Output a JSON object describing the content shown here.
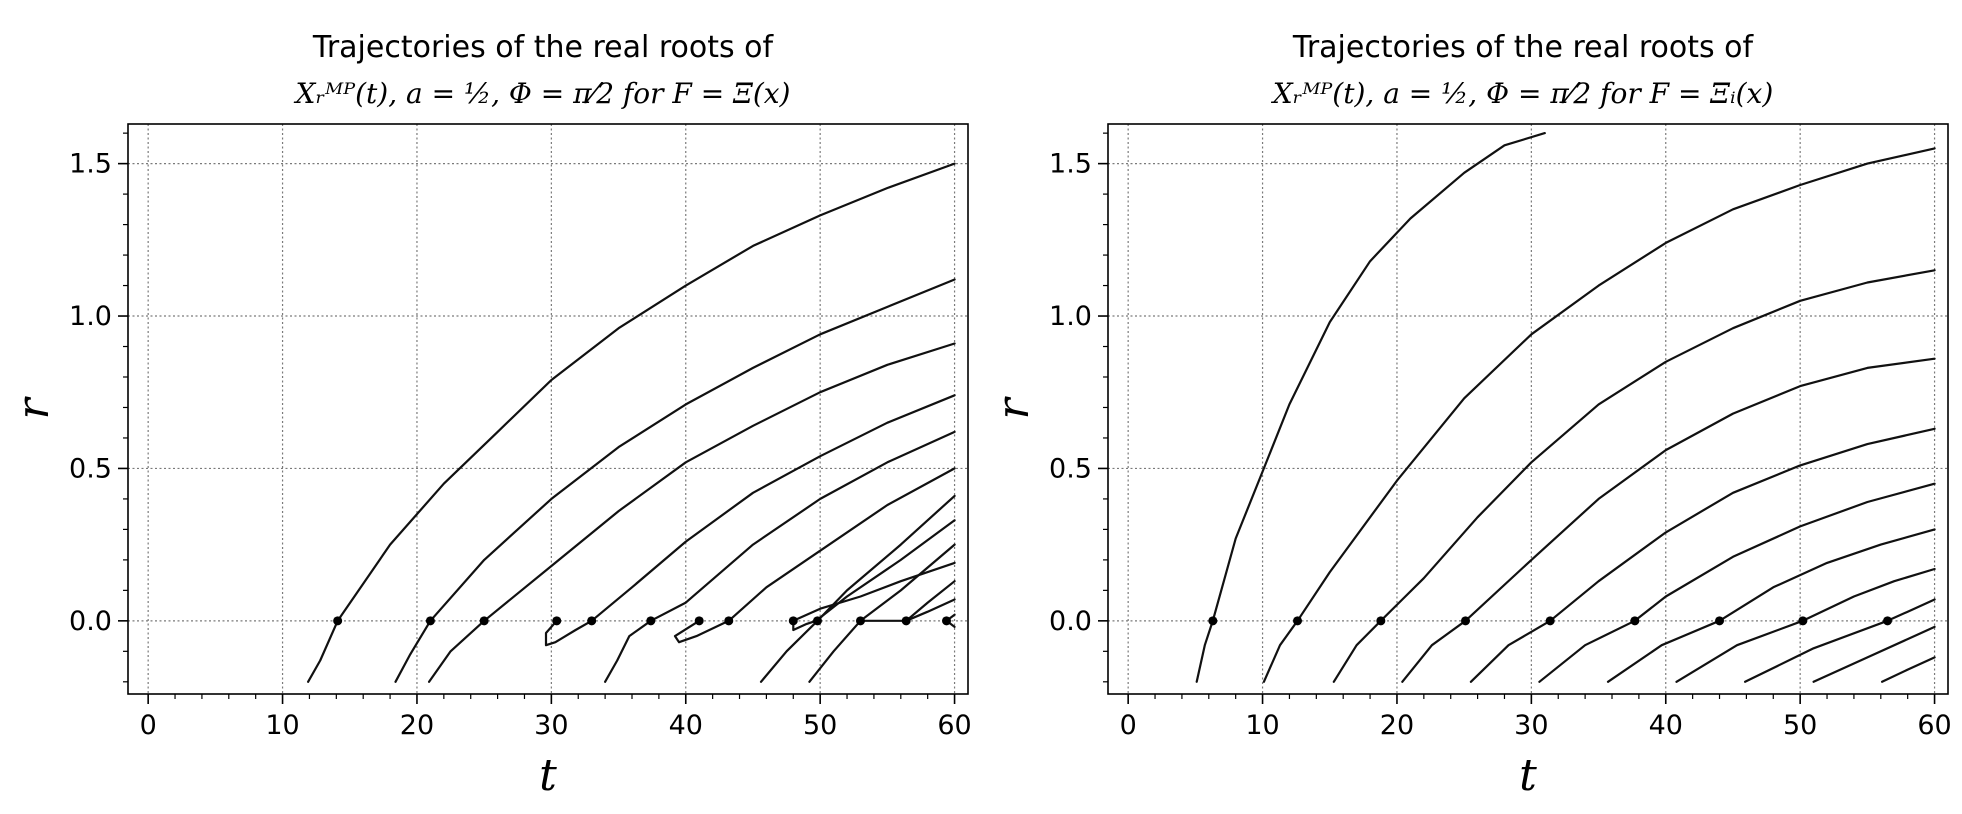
{
  "chart_data": [
    {
      "type": "line",
      "title_line1": "Trajectories of the real roots of",
      "title_line2": "X_r^{MP}(t), a = 1/2, Φ = π/2 for F = Ξ(x)",
      "title_line2_display": "Xᵣᴹᴾ(t), a = ½, Φ = π⁄2 for F = Ξ(x)",
      "xlabel": "t",
      "ylabel": "r",
      "xlim": [
        -1.5,
        61
      ],
      "ylim": [
        -0.24,
        1.63
      ],
      "xticks": [
        0,
        10,
        20,
        30,
        40,
        50,
        60
      ],
      "yticks": [
        0.0,
        0.5,
        1.0,
        1.5
      ],
      "xtick_labels": [
        "0",
        "10",
        "20",
        "30",
        "40",
        "50",
        "60"
      ],
      "ytick_labels": [
        "0.0",
        "0.5",
        "1.0",
        "1.5"
      ],
      "grid": true,
      "series": [
        {
          "points": [
            [
              11.9,
              -0.2
            ],
            [
              12.8,
              -0.13
            ],
            [
              14.1,
              0.0
            ],
            [
              18,
              0.25
            ],
            [
              22,
              0.45
            ],
            [
              26,
              0.62
            ],
            [
              30,
              0.79
            ],
            [
              35,
              0.96
            ],
            [
              40,
              1.1
            ],
            [
              45,
              1.23
            ],
            [
              50,
              1.33
            ],
            [
              55,
              1.42
            ],
            [
              60,
              1.5
            ]
          ]
        },
        {
          "points": [
            [
              18.4,
              -0.2
            ],
            [
              19.5,
              -0.11
            ],
            [
              21.0,
              0.0
            ],
            [
              25,
              0.2
            ],
            [
              30,
              0.4
            ],
            [
              35,
              0.57
            ],
            [
              40,
              0.71
            ],
            [
              45,
              0.83
            ],
            [
              50,
              0.94
            ],
            [
              55,
              1.03
            ],
            [
              60,
              1.12
            ]
          ]
        },
        {
          "points": [
            [
              20.9,
              -0.2
            ],
            [
              22.5,
              -0.1
            ],
            [
              25.0,
              0.0
            ],
            [
              30,
              0.18
            ],
            [
              35,
              0.36
            ],
            [
              40,
              0.52
            ],
            [
              45,
              0.64
            ],
            [
              50,
              0.75
            ],
            [
              55,
              0.84
            ],
            [
              60,
              0.91
            ]
          ]
        },
        {
          "points": [
            [
              30.4,
              0.0
            ],
            [
              29.6,
              -0.04
            ],
            [
              29.6,
              -0.08
            ],
            [
              30.3,
              -0.07
            ],
            [
              31.8,
              -0.03
            ],
            [
              33.0,
              0.0
            ],
            [
              36,
              0.11
            ],
            [
              40,
              0.26
            ],
            [
              45,
              0.42
            ],
            [
              50,
              0.54
            ],
            [
              55,
              0.65
            ],
            [
              60,
              0.74
            ]
          ]
        },
        {
          "points": [
            [
              34.0,
              -0.2
            ],
            [
              34.9,
              -0.13
            ],
            [
              35.8,
              -0.05
            ],
            [
              37.4,
              0.0
            ],
            [
              40,
              0.06
            ],
            [
              45,
              0.25
            ],
            [
              50,
              0.4
            ],
            [
              55,
              0.52
            ],
            [
              60,
              0.62
            ]
          ]
        },
        {
          "points": [
            [
              41.0,
              0.0
            ],
            [
              39.2,
              -0.05
            ],
            [
              39.5,
              -0.07
            ],
            [
              40.8,
              -0.05
            ],
            [
              43.2,
              0.0
            ],
            [
              46,
              0.11
            ],
            [
              50,
              0.23
            ],
            [
              55,
              0.38
            ],
            [
              60,
              0.5
            ]
          ]
        },
        {
          "points": [
            [
              45.6,
              -0.2
            ],
            [
              47.5,
              -0.1
            ],
            [
              49.8,
              0.0
            ],
            [
              52,
              0.1
            ],
            [
              56,
              0.25
            ],
            [
              60,
              0.41
            ]
          ]
        },
        {
          "points": [
            [
              48.0,
              0.0
            ],
            [
              48.0,
              -0.03
            ],
            [
              49.0,
              -0.01
            ],
            [
              49.7,
              0.0
            ],
            [
              52,
              0.08
            ],
            [
              56,
              0.2
            ],
            [
              60,
              0.33
            ]
          ]
        },
        {
          "points": [
            [
              49.2,
              -0.2
            ],
            [
              51.0,
              -0.1
            ],
            [
              53.0,
              0.0
            ],
            [
              56,
              0.1
            ],
            [
              60,
              0.25
            ]
          ]
        },
        {
          "points": [
            [
              48.0,
              0.0
            ],
            [
              50,
              0.04
            ],
            [
              53,
              0.08
            ],
            [
              56,
              0.13
            ],
            [
              60,
              0.19
            ]
          ]
        },
        {
          "points": [
            [
              53.0,
              0.0
            ],
            [
              56.4,
              0.0
            ],
            [
              58,
              0.06
            ],
            [
              60,
              0.13
            ]
          ]
        },
        {
          "points": [
            [
              56.4,
              0.0
            ],
            [
              58,
              0.03
            ],
            [
              60,
              0.07
            ]
          ]
        },
        {
          "points": [
            [
              59.4,
              0.0
            ],
            [
              60,
              0.02
            ]
          ]
        },
        {
          "points": [
            [
              59.4,
              0.0
            ],
            [
              60,
              -0.02
            ]
          ]
        }
      ],
      "root_markers": [
        14.1,
        21.0,
        25.0,
        30.4,
        33.0,
        37.4,
        41.0,
        43.2,
        48.0,
        49.8,
        53.0,
        56.4,
        59.4
      ],
      "marker_y": 0.0
    },
    {
      "type": "line",
      "title_line1": "Trajectories of the real roots of",
      "title_line2": "X_r^{MP}(t), a = 1/2, Φ = π/2 for F = Ξ_i(x)",
      "title_line2_display": "Xᵣᴹᴾ(t), a = ½, Φ = π⁄2 for F = Ξᵢ(x)",
      "xlabel": "t",
      "ylabel": "r",
      "xlim": [
        -1.5,
        61
      ],
      "ylim": [
        -0.24,
        1.63
      ],
      "xticks": [
        0,
        10,
        20,
        30,
        40,
        50,
        60
      ],
      "yticks": [
        0.0,
        0.5,
        1.0,
        1.5
      ],
      "xtick_labels": [
        "0",
        "10",
        "20",
        "30",
        "40",
        "50",
        "60"
      ],
      "ytick_labels": [
        "0.0",
        "0.5",
        "1.0",
        "1.5"
      ],
      "grid": true,
      "series": [
        {
          "points": [
            [
              5.1,
              -0.2
            ],
            [
              5.7,
              -0.08
            ],
            [
              6.3,
              0.0
            ],
            [
              8,
              0.27
            ],
            [
              10,
              0.49
            ],
            [
              12,
              0.71
            ],
            [
              15,
              0.98
            ],
            [
              18,
              1.18
            ],
            [
              21,
              1.32
            ],
            [
              25,
              1.47
            ],
            [
              28,
              1.56
            ],
            [
              31,
              1.6
            ]
          ]
        },
        {
          "points": [
            [
              10.1,
              -0.2
            ],
            [
              11.3,
              -0.08
            ],
            [
              12.6,
              0.0
            ],
            [
              15,
              0.16
            ],
            [
              20,
              0.46
            ],
            [
              25,
              0.73
            ],
            [
              30,
              0.94
            ],
            [
              35,
              1.1
            ],
            [
              40,
              1.24
            ],
            [
              45,
              1.35
            ],
            [
              50,
              1.43
            ],
            [
              55,
              1.5
            ],
            [
              60,
              1.55
            ]
          ]
        },
        {
          "points": [
            [
              15.3,
              -0.2
            ],
            [
              17.0,
              -0.08
            ],
            [
              18.8,
              0.0
            ],
            [
              22,
              0.14
            ],
            [
              26,
              0.34
            ],
            [
              30,
              0.52
            ],
            [
              35,
              0.71
            ],
            [
              40,
              0.85
            ],
            [
              45,
              0.96
            ],
            [
              50,
              1.05
            ],
            [
              55,
              1.11
            ],
            [
              60,
              1.15
            ]
          ]
        },
        {
          "points": [
            [
              20.4,
              -0.2
            ],
            [
              22.6,
              -0.08
            ],
            [
              25.1,
              0.0
            ],
            [
              30,
              0.2
            ],
            [
              35,
              0.4
            ],
            [
              40,
              0.56
            ],
            [
              45,
              0.68
            ],
            [
              50,
              0.77
            ],
            [
              55,
              0.83
            ],
            [
              60,
              0.86
            ]
          ]
        },
        {
          "points": [
            [
              25.5,
              -0.2
            ],
            [
              28.3,
              -0.08
            ],
            [
              31.4,
              0.0
            ],
            [
              35,
              0.13
            ],
            [
              40,
              0.29
            ],
            [
              45,
              0.42
            ],
            [
              50,
              0.51
            ],
            [
              55,
              0.58
            ],
            [
              60,
              0.63
            ]
          ]
        },
        {
          "points": [
            [
              30.6,
              -0.2
            ],
            [
              34.0,
              -0.08
            ],
            [
              37.7,
              0.0
            ],
            [
              40,
              0.08
            ],
            [
              45,
              0.21
            ],
            [
              50,
              0.31
            ],
            [
              55,
              0.39
            ],
            [
              60,
              0.45
            ]
          ]
        },
        {
          "points": [
            [
              35.7,
              -0.2
            ],
            [
              39.7,
              -0.08
            ],
            [
              44.0,
              0.0
            ],
            [
              48,
              0.11
            ],
            [
              52,
              0.19
            ],
            [
              56,
              0.25
            ],
            [
              60,
              0.3
            ]
          ]
        },
        {
          "points": [
            [
              40.8,
              -0.2
            ],
            [
              45.3,
              -0.08
            ],
            [
              50.2,
              0.0
            ],
            [
              54,
              0.08
            ],
            [
              57,
              0.13
            ],
            [
              60,
              0.17
            ]
          ]
        },
        {
          "points": [
            [
              45.9,
              -0.2
            ],
            [
              51.0,
              -0.09
            ],
            [
              56.5,
              0.0
            ],
            [
              58,
              0.03
            ],
            [
              60,
              0.07
            ]
          ]
        },
        {
          "points": [
            [
              51.0,
              -0.2
            ],
            [
              55,
              -0.12
            ],
            [
              60,
              -0.02
            ]
          ]
        },
        {
          "points": [
            [
              56.1,
              -0.2
            ],
            [
              58,
              -0.16
            ],
            [
              60,
              -0.12
            ]
          ]
        }
      ],
      "root_markers": [
        6.3,
        12.6,
        18.8,
        25.1,
        31.4,
        37.7,
        44.0,
        50.2,
        56.5
      ],
      "marker_y": 0.0
    }
  ]
}
